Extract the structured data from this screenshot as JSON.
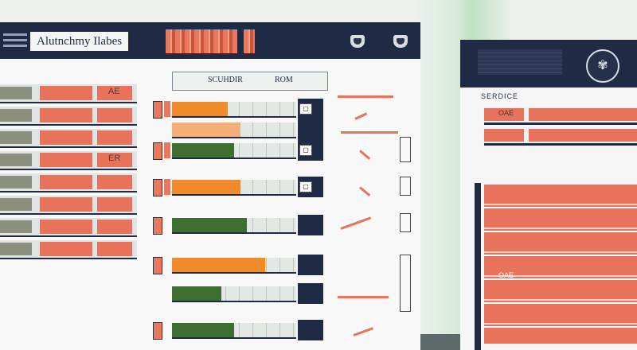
{
  "app": {
    "title": "Alutnchmy Ilabes"
  },
  "main_table": {
    "col_headers": [
      "SCUHDIR",
      "ROM"
    ],
    "left_rows": [
      {
        "label": "AE"
      },
      {
        "label": ""
      },
      {
        "label": ""
      },
      {
        "label": "ER"
      },
      {
        "label": ""
      },
      {
        "label": ""
      },
      {
        "label": ""
      },
      {
        "label": ""
      }
    ],
    "progress_rows": [
      {
        "fill_fraction": 0.45,
        "color": "#f08a2a"
      },
      {
        "fill_fraction": 0.55,
        "color": "#f5b07a"
      },
      {
        "fill_fraction": 0.5,
        "color": "#3f6e32"
      },
      {
        "fill_fraction": 0.55,
        "color": "#f08a2a"
      },
      {
        "fill_fraction": 0.6,
        "color": "#3f6e32"
      },
      {
        "fill_fraction": 0.75,
        "color": "#f08a2a"
      },
      {
        "fill_fraction": 0.4,
        "color": "#3f6e32"
      },
      {
        "fill_fraction": 0.5,
        "color": "#3f6e32"
      }
    ]
  },
  "right_panel": {
    "header": "SERDICE",
    "rows": [
      {
        "label": "OAE"
      },
      {
        "label": ""
      }
    ],
    "footer_label": "OAE"
  },
  "icons": [
    "menu-icon",
    "cup-icon",
    "emblem-icon"
  ],
  "colors": {
    "accent": "#e8735d",
    "navy": "#1f2a44",
    "green": "#3f6e32",
    "orange": "#f08a2a"
  }
}
